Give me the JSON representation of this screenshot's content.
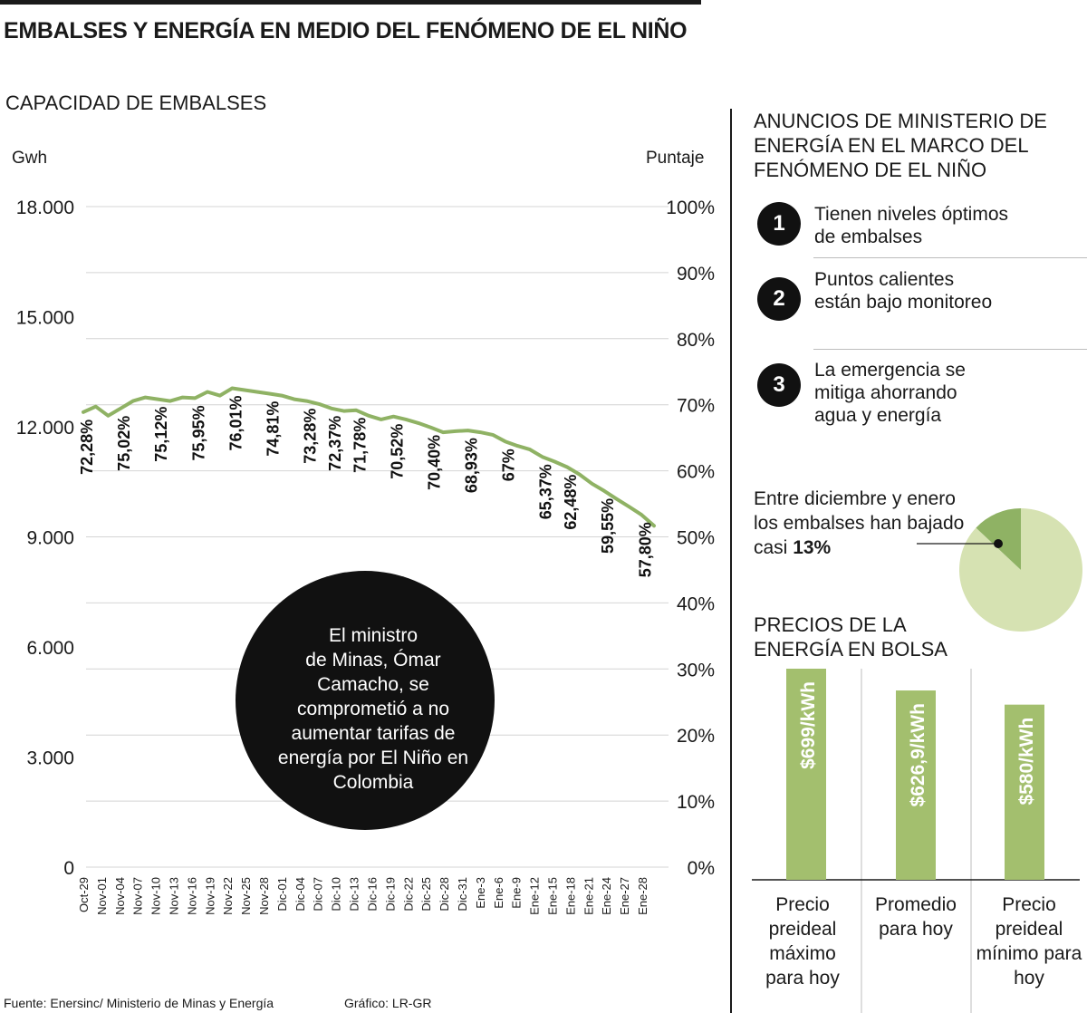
{
  "header": {
    "title": "EMBALSES Y ENERGÍA EN MEDIO DEL FENÓMENO DE EL NIÑO",
    "subtitle": "CAPACIDAD DE EMBALSES"
  },
  "chart_data": [
    {
      "type": "line",
      "title": "CAPACIDAD DE EMBALSES",
      "ylabel_left": "Gwh",
      "ylabel_right": "Puntaje",
      "ylim_left": [
        0,
        18000
      ],
      "ylim_right": [
        0,
        100
      ],
      "yticks_left": [
        "18.000",
        "15.000",
        "12.000",
        "9.000",
        "6.000",
        "3.000",
        "0"
      ],
      "yticks_right": [
        "100%",
        "90%",
        "80%",
        "70%",
        "60%",
        "50%",
        "40%",
        "30%",
        "20%",
        "10%",
        "0%"
      ],
      "grid": true,
      "x_labels": [
        "Oct-29",
        "Nov-01",
        "Nov-04",
        "Nov-07",
        "Nov-10",
        "Nov-13",
        "Nov-16",
        "Nov-19",
        "Nov-22",
        "Nov-25",
        "Nov-28",
        "Dic-01",
        "Dic-04",
        "Dic-07",
        "Dic-10",
        "Dic-13",
        "Dic-16",
        "Dic-19",
        "Dic-22",
        "Dic-25",
        "Dic-28",
        "Dic-31",
        "Ene-3",
        "Ene-6",
        "Ene-9",
        "Ene-12",
        "Ene-15",
        "Ene-18",
        "Ene-21",
        "Ene-24",
        "Ene-27",
        "Ene-28"
      ],
      "series": [
        {
          "color": "#8fb264",
          "values": [
            12400,
            12550,
            12300,
            12500,
            12700,
            12800,
            12750,
            12700,
            12800,
            12780,
            12950,
            12850,
            13050,
            13000,
            12950,
            12900,
            12850,
            12750,
            12700,
            12620,
            12500,
            12430,
            12450,
            12300,
            12200,
            12280,
            12200,
            12100,
            11980,
            11850,
            11880,
            11900,
            11850,
            11780,
            11600,
            11480,
            11380,
            11180,
            11050,
            10900,
            10700,
            10450,
            10250,
            10030,
            9820,
            9600,
            9300
          ]
        }
      ],
      "annotations": [
        "72,28%",
        "75,02%",
        "75,12%",
        "75,95%",
        "76,01%",
        "74,81%",
        "73,28%",
        "72,37%",
        "71,78%",
        "70,52%",
        "70,40%",
        "68,93%",
        "67%",
        "65,37%",
        "62,48%",
        "59,55%",
        "57,80%"
      ],
      "annotation_x": [
        0,
        3,
        6,
        9,
        12,
        15,
        18,
        20,
        22,
        25,
        28,
        31,
        34,
        37,
        39,
        42,
        45
      ]
    },
    {
      "type": "pie",
      "slices": [
        {
          "label": "bajada",
          "value": 13,
          "color": "#8fb264"
        },
        {
          "label": "resto",
          "value": 87,
          "color": "#d6e2b2"
        }
      ]
    },
    {
      "type": "bar",
      "title": "PRECIOS DE LA ENERGÍA EN BOLSA",
      "categories": [
        "Precio preideal máximo para hoy",
        "Promedio para hoy",
        "Precio preideal mínimo para hoy"
      ],
      "values": [
        699,
        626.9,
        580
      ],
      "labels": [
        "$699/kWh",
        "$626,9/kWh",
        "$580/kWh"
      ],
      "color": "#a3bf6e"
    }
  ],
  "callout": {
    "text": "El ministro de Minas, Ómar Camacho, se comprometió a no aumentar tarifas de energía por El Niño en Colombia",
    "lines": [
      "El ministro",
      "de Minas, Ómar",
      "Camacho, se",
      "comprometió a no",
      "aumentar tarifas de",
      "energía por El Niño en",
      "Colombia"
    ]
  },
  "announcements": {
    "title": "ANUNCIOS DE MINISTERIO DE ENERGÍA EN EL MARCO DEL FENÓMENO DE EL NIÑO",
    "items": [
      {
        "number": "1",
        "text": "Tienen niveles óptimos de embalses"
      },
      {
        "number": "2",
        "text": "Puntos calientes están bajo monitoreo"
      },
      {
        "number": "3",
        "text": "La emergencia se mitiga ahorrando agua y energía"
      }
    ]
  },
  "pie_note": {
    "text": "Entre diciembre y enero los embalses han bajado casi",
    "highlight": "13%"
  },
  "prices": {
    "title": "PRECIOS DE LA ENERGÍA EN BOLSA"
  },
  "footer": {
    "source": "Fuente: Enersinc/ Ministerio de Minas y Energía",
    "credit": "Gráfico: LR-GR"
  }
}
